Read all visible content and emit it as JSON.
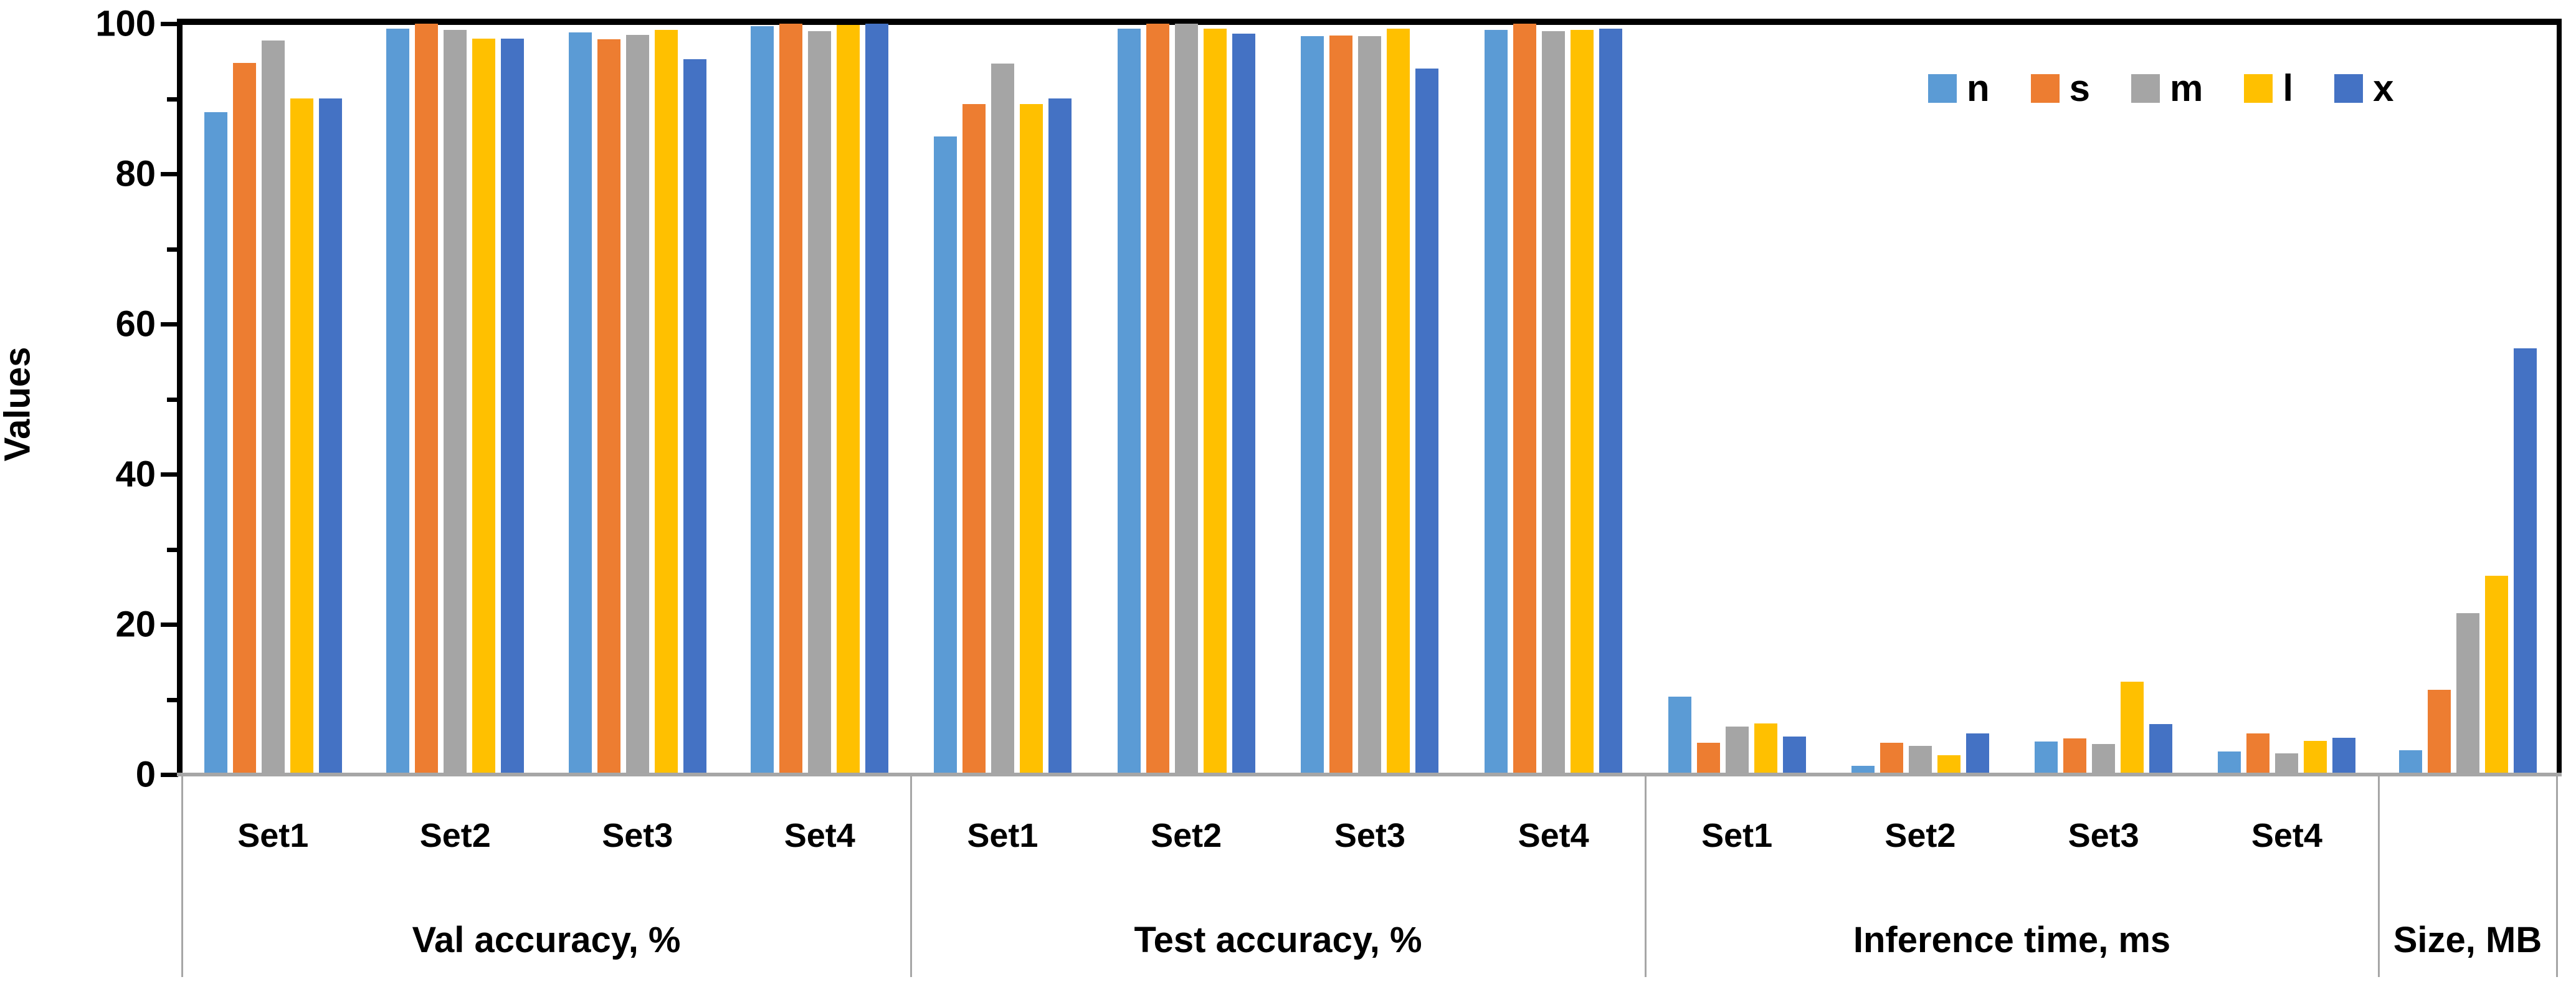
{
  "chart_data": {
    "type": "bar",
    "title": "",
    "ylabel": "Values",
    "ylim": [
      0,
      100
    ],
    "ytick_labels": [
      "0",
      "20",
      "40",
      "60",
      "80",
      "100"
    ],
    "minor_tick_step": 10,
    "grid": false,
    "legend_position": "top-right-inside",
    "series_names": [
      "n",
      "s",
      "m",
      "l",
      "x"
    ],
    "series_colors": [
      "#5B9BD5",
      "#ED7D31",
      "#A5A5A5",
      "#FFC000",
      "#4472C4"
    ],
    "groups": [
      {
        "label": "Val accuracy, %",
        "categories": [
          "Set1",
          "Set2",
          "Set3",
          "Set4"
        ],
        "series": [
          {
            "name": "n",
            "values": [
              88.2,
              99.3,
              98.8,
              99.7
            ]
          },
          {
            "name": "s",
            "values": [
              94.8,
              100,
              97.9,
              100
            ]
          },
          {
            "name": "m",
            "values": [
              97.8,
              99.2,
              98.5,
              99
            ]
          },
          {
            "name": "l",
            "values": [
              90,
              98,
              99.2,
              99.8
            ]
          },
          {
            "name": "x",
            "values": [
              90,
              98,
              95.3,
              100
            ]
          }
        ]
      },
      {
        "label": "Test accuracy, %",
        "categories": [
          "Set1",
          "Set2",
          "Set3",
          "Set4"
        ],
        "series": [
          {
            "name": "n",
            "values": [
              85,
              99.3,
              98.3,
              99.2
            ]
          },
          {
            "name": "s",
            "values": [
              89.3,
              100,
              98.4,
              100
            ]
          },
          {
            "name": "m",
            "values": [
              94.7,
              100,
              98.3,
              99
            ]
          },
          {
            "name": "l",
            "values": [
              89.3,
              99.3,
              99.3,
              99.2
            ]
          },
          {
            "name": "x",
            "values": [
              90,
              98.7,
              94,
              99.3
            ]
          }
        ]
      },
      {
        "label": "Inference time, ms",
        "categories": [
          "Set1",
          "Set2",
          "Set3",
          "Set4"
        ],
        "series": [
          {
            "name": "n",
            "values": [
              10.4,
              1.2,
              4.4,
              3.1
            ]
          },
          {
            "name": "s",
            "values": [
              4.2,
              4.2,
              4.8,
              5.5
            ]
          },
          {
            "name": "m",
            "values": [
              6.4,
              3.8,
              4.1,
              2.8
            ]
          },
          {
            "name": "l",
            "values": [
              6.8,
              2.6,
              12.4,
              4.5
            ]
          },
          {
            "name": "x",
            "values": [
              5.1,
              5.5,
              6.7,
              4.9
            ]
          }
        ]
      },
      {
        "label": "Size, MB",
        "categories": [
          ""
        ],
        "series": [
          {
            "name": "n",
            "values": [
              3.2
            ]
          },
          {
            "name": "s",
            "values": [
              11.3
            ]
          },
          {
            "name": "m",
            "values": [
              21.5
            ]
          },
          {
            "name": "l",
            "values": [
              26.5
            ]
          },
          {
            "name": "x",
            "values": [
              56.8
            ]
          }
        ]
      }
    ]
  },
  "legend": {
    "items": [
      {
        "label": "n",
        "color": "#5B9BD5"
      },
      {
        "label": "s",
        "color": "#ED7D31"
      },
      {
        "label": "m",
        "color": "#A5A5A5"
      },
      {
        "label": "l",
        "color": "#FFC000"
      },
      {
        "label": "x",
        "color": "#4472C4"
      }
    ]
  },
  "axis": {
    "y_title": "Values"
  }
}
